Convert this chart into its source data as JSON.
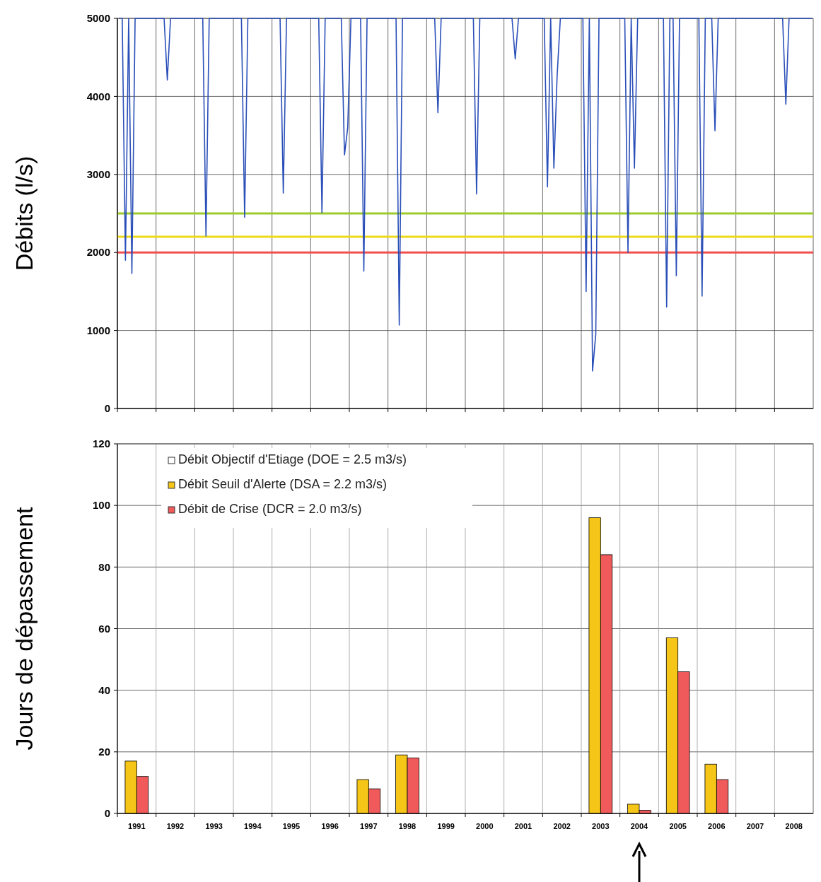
{
  "chart_data": [
    {
      "type": "line",
      "ylabel": "Débits (l/s)",
      "categories": [
        null,
        null,
        null,
        null,
        null,
        null,
        null,
        null,
        null,
        null,
        null,
        null,
        null,
        null,
        null,
        null,
        null,
        null,
        null,
        null,
        null,
        null,
        null,
        null,
        null,
        null,
        null,
        null,
        null,
        null,
        null,
        null,
        null,
        null,
        null,
        null,
        null,
        null,
        null,
        null,
        null,
        null,
        null,
        null,
        null,
        null,
        null,
        null,
        null,
        null,
        null,
        null,
        null,
        null,
        null,
        null,
        null,
        null,
        null,
        null,
        null,
        null,
        null,
        null,
        null,
        null,
        null,
        null,
        null,
        null,
        null,
        null,
        null,
        null,
        null,
        null,
        null,
        null,
        null,
        null,
        null,
        null,
        null,
        null,
        null,
        null,
        null,
        null,
        null,
        null,
        null,
        null,
        null,
        null,
        null,
        null,
        null,
        null,
        null,
        null,
        null,
        null,
        null,
        null,
        null,
        null,
        null,
        null,
        null,
        null,
        null,
        null,
        null,
        null,
        null,
        null,
        null,
        null,
        null,
        null,
        null,
        null,
        null,
        null,
        null,
        null,
        null,
        null,
        null,
        null,
        null,
        null,
        null,
        null,
        null,
        null,
        null,
        null,
        null,
        null,
        null,
        null,
        null,
        null,
        null,
        null,
        null,
        null,
        null,
        null,
        null,
        null,
        null,
        null,
        null,
        null,
        null,
        null,
        null,
        null,
        null,
        null,
        null,
        null,
        null,
        null,
        null,
        null,
        null,
        null,
        null,
        null,
        null,
        null,
        null,
        null,
        null,
        null,
        null,
        null,
        null,
        null,
        null,
        null,
        null,
        null,
        null,
        null,
        null,
        null,
        null,
        null,
        null,
        null,
        null,
        null,
        null,
        null,
        null,
        null,
        null,
        null,
        null,
        null,
        null,
        null,
        null,
        null,
        null,
        null,
        null,
        null,
        null,
        null,
        null,
        null
      ],
      "ylim": [
        0,
        5000
      ],
      "yticks": [
        0,
        1000,
        2000,
        3000,
        4000,
        5000
      ],
      "grid": true,
      "tick_labels": "y",
      "legend": false,
      "series": [
        {
          "color": "#2a4fb8",
          "values": [
            5000,
            5000,
            1900,
            5000,
            1730,
            5000,
            5000,
            5000,
            5000,
            5000,
            5000,
            5000,
            5000,
            5000,
            5000,
            4210,
            5000,
            5000,
            5000,
            5000,
            5000,
            5000,
            5000,
            5000,
            5000,
            5000,
            5000,
            2210,
            5000,
            5000,
            5000,
            5000,
            5000,
            5000,
            5000,
            5000,
            5000,
            5000,
            5000,
            2450,
            5000,
            5000,
            5000,
            5000,
            5000,
            5000,
            5000,
            5000,
            5000,
            5000,
            5000,
            2760,
            5000,
            5000,
            5000,
            5000,
            5000,
            5000,
            5000,
            5000,
            5000,
            5000,
            5000,
            2510,
            5000,
            5000,
            5000,
            5000,
            5000,
            5000,
            3250,
            3600,
            5000,
            5000,
            5000,
            5000,
            1760,
            5000,
            5000,
            5000,
            5000,
            5000,
            5000,
            5000,
            5000,
            5000,
            5000,
            1070,
            5000,
            5000,
            5000,
            5000,
            5000,
            5000,
            5000,
            5000,
            5000,
            5000,
            5000,
            3790,
            5000,
            5000,
            5000,
            5000,
            5000,
            5000,
            5000,
            5000,
            5000,
            5000,
            5000,
            2750,
            5000,
            5000,
            5000,
            5000,
            5000,
            5000,
            5000,
            5000,
            5000,
            5000,
            5000,
            4480,
            5000,
            5000,
            5000,
            5000,
            5000,
            5000,
            5000,
            5000,
            5000,
            2840,
            5000,
            3080,
            4260,
            5000,
            5000,
            5000,
            5000,
            5000,
            5000,
            5000,
            5000,
            1500,
            5000,
            480,
            950,
            5000,
            5000,
            5000,
            5000,
            5000,
            5000,
            5000,
            5000,
            5000,
            2000,
            5000,
            3080,
            5000,
            5000,
            5000,
            5000,
            5000,
            5000,
            5000,
            5000,
            5000,
            1300,
            5000,
            5000,
            1700,
            5000,
            5000,
            5000,
            5000,
            5000,
            5000,
            5000,
            1440,
            5000,
            5000,
            5000,
            3560,
            5000,
            5000,
            5000,
            5000,
            5000,
            5000,
            5000,
            5000,
            5000,
            5000,
            5000,
            5000,
            5000,
            5000,
            5000,
            5000,
            5000,
            5000,
            5000,
            5000,
            5000,
            3900,
            5000,
            5000,
            5000,
            5000,
            5000,
            5000,
            5000,
            5000
          ]
        }
      ],
      "ref_lines": [
        {
          "axis": "y",
          "value": 2500,
          "color": "#9ccc2c"
        },
        {
          "axis": "y",
          "value": 2200,
          "color": "#ecd91a"
        },
        {
          "axis": "y",
          "value": 2000,
          "color": "#f25050"
        }
      ]
    },
    {
      "type": "bar",
      "ylabel": "Jours de dépassement",
      "categories": [
        "1991",
        "1992",
        "1993",
        "1994",
        "1995",
        "1996",
        "1997",
        "1998",
        "1999",
        "2000",
        "2001",
        "2002",
        "2003",
        "2004",
        "2005",
        "2006",
        "2007",
        "2008"
      ],
      "ylim": [
        0,
        120
      ],
      "yticks": [
        0,
        20,
        40,
        60,
        80,
        100,
        120
      ],
      "grid": true,
      "legend": "top left",
      "series": [
        {
          "name": "Débit Objectif d'Etiage (DOE = 2.5 m3/s)",
          "color": "#ffffff",
          "values": [
            null,
            null,
            null,
            null,
            null,
            null,
            null,
            null,
            null,
            null,
            null,
            null,
            null,
            null,
            null,
            null,
            null,
            null
          ]
        },
        {
          "name": "Débit Seuil d'Alerte (DSA = 2.2 m3/s)",
          "color": "#f5c518",
          "values": [
            17,
            0,
            0,
            0,
            0,
            0,
            11,
            19,
            0,
            0,
            0,
            0,
            96,
            3,
            57,
            16,
            0,
            0
          ]
        },
        {
          "name": "Débit de Crise (DCR = 2.0 m3/s)",
          "color": "#f05a5a",
          "values": [
            12,
            0,
            0,
            0,
            0,
            0,
            8,
            18,
            0,
            0,
            0,
            0,
            84,
            1,
            46,
            11,
            0,
            0
          ]
        }
      ]
    }
  ]
}
